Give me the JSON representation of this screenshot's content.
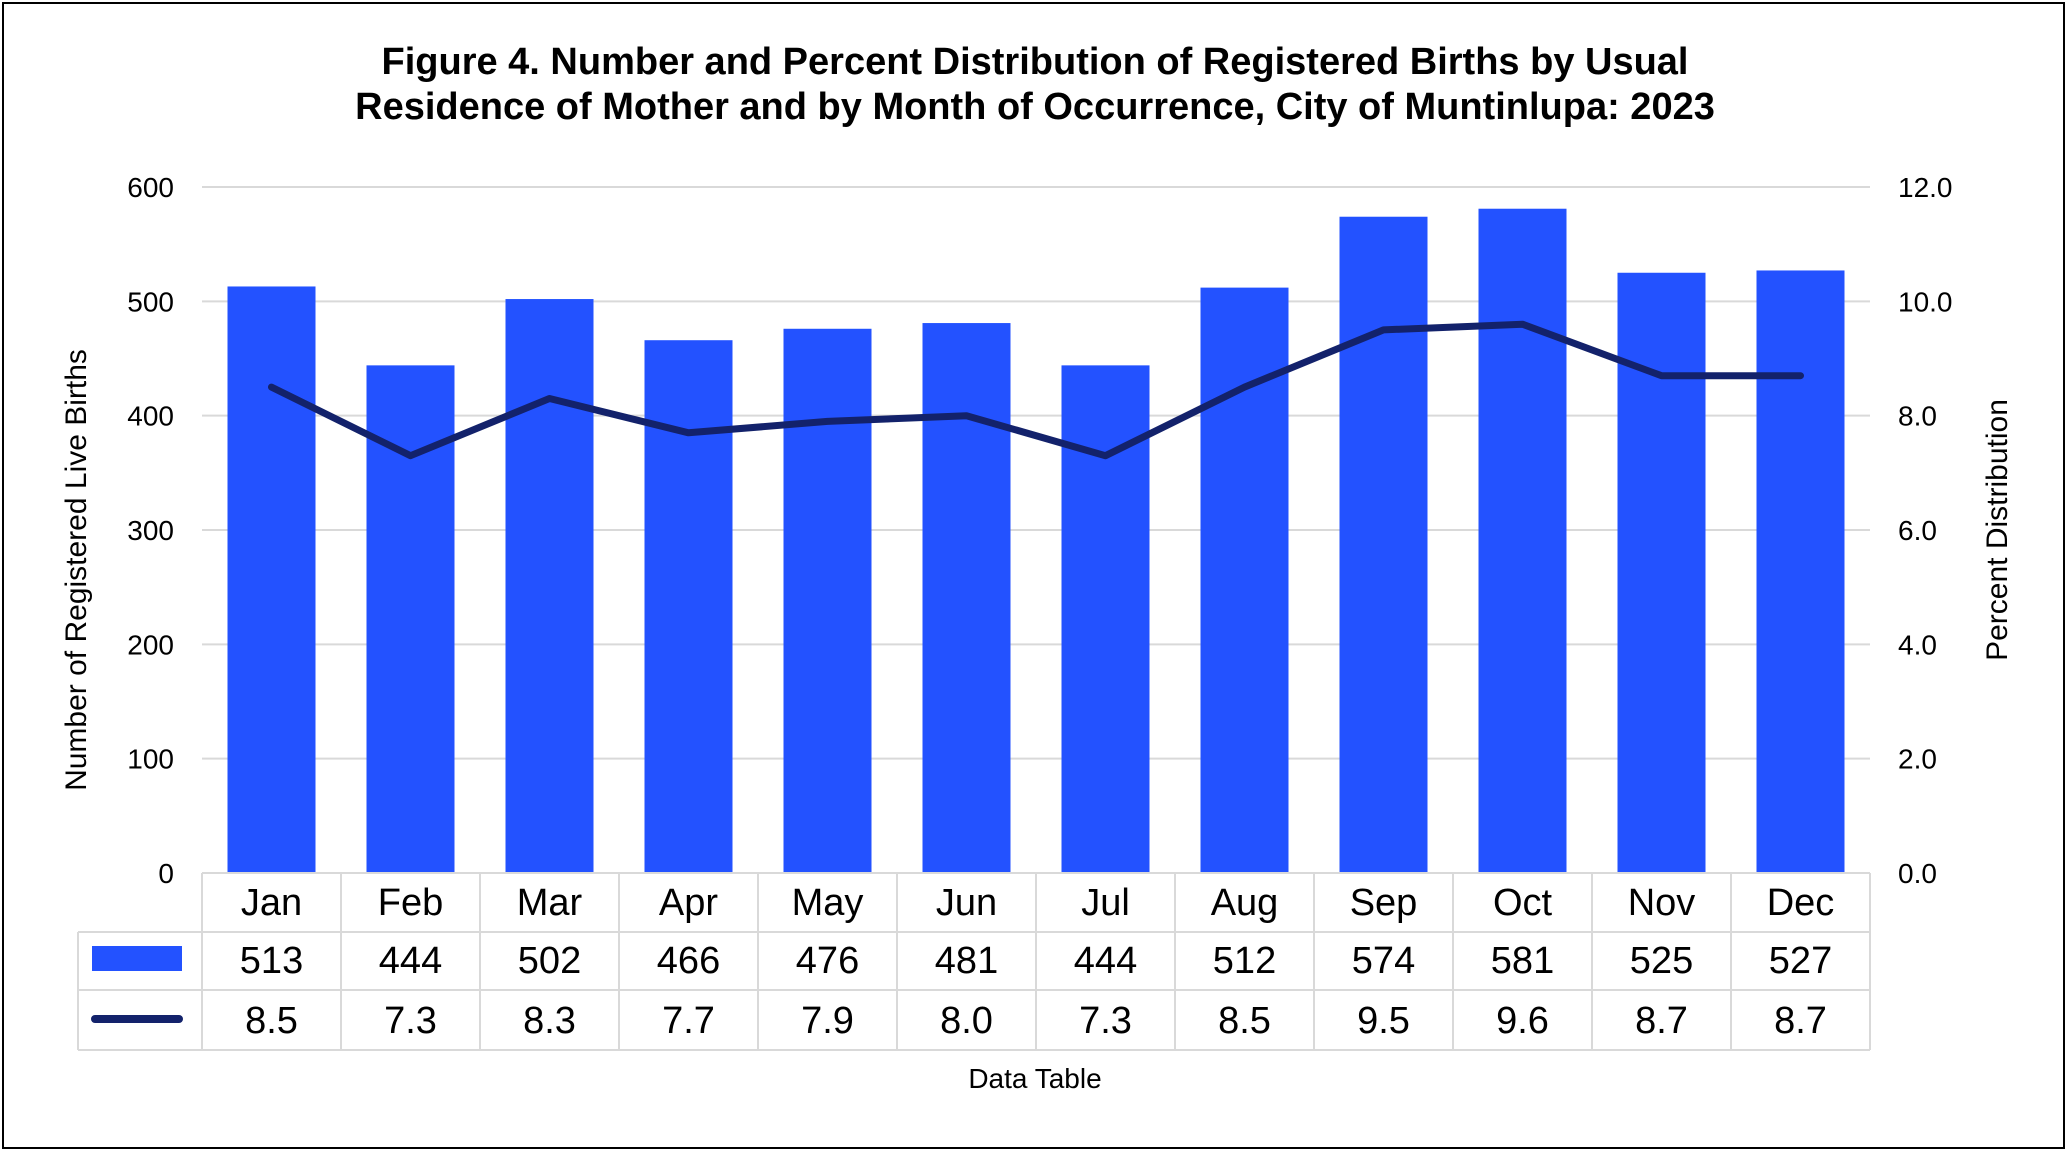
{
  "chart_data": {
    "type": "bar",
    "title_lines": [
      "Figure 4. Number and Percent Distribution of Registered Births by Usual",
      "Residence of Mother and by Month of Occurrence, City of Muntinlupa: 2023"
    ],
    "categories": [
      "Jan",
      "Feb",
      "Mar",
      "Apr",
      "May",
      "Jun",
      "Jul",
      "Aug",
      "Sep",
      "Oct",
      "Nov",
      "Dec"
    ],
    "series": [
      {
        "type": "bar",
        "axis": "left",
        "color": "#2352FF",
        "values": [
          513,
          444,
          502,
          466,
          476,
          481,
          444,
          512,
          574,
          581,
          525,
          527
        ],
        "labels": [
          "513",
          "444",
          "502",
          "466",
          "476",
          "481",
          "444",
          "512",
          "574",
          "581",
          "525",
          "527"
        ]
      },
      {
        "type": "line",
        "axis": "right",
        "color": "#13226B",
        "values": [
          8.5,
          7.3,
          8.3,
          7.7,
          7.9,
          8.0,
          7.3,
          8.5,
          9.5,
          9.6,
          8.7,
          8.7
        ],
        "labels": [
          "8.5",
          "7.3",
          "8.3",
          "7.7",
          "7.9",
          "8.0",
          "7.3",
          "8.5",
          "9.5",
          "9.6",
          "8.7",
          "8.7"
        ]
      }
    ],
    "ylabel": "Number of Registered Live Births",
    "y2label": "Percent Distribution",
    "ylim": [
      0,
      600
    ],
    "y2lim": [
      0,
      12
    ],
    "yticks": [
      "0",
      "100",
      "200",
      "300",
      "400",
      "500",
      "600"
    ],
    "y2ticks": [
      "0.0",
      "2.0",
      "4.0",
      "6.0",
      "8.0",
      "10.0",
      "12.0"
    ],
    "xlabel": "Data Table",
    "grid": true,
    "legend": "in data table"
  }
}
